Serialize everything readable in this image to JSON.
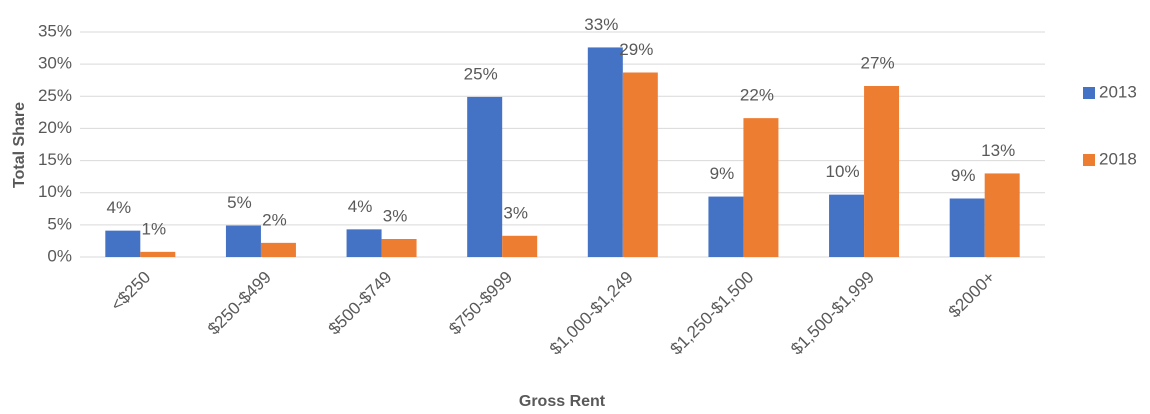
{
  "chart_data": {
    "type": "bar",
    "x_label": "Gross Rent",
    "y_label": "Total Share",
    "categories": [
      "<$250",
      "$250-$499",
      "$500-$749",
      "$750-$999",
      "$1,000-$1,249",
      "$1,250-$1,500",
      "$1,500-$1,999",
      "$2000+"
    ],
    "series": [
      {
        "name": "2013",
        "color": "#4472c4",
        "values": [
          4.1,
          4.9,
          4.3,
          24.9,
          32.6,
          9.4,
          9.7,
          9.1
        ],
        "value_labels": [
          "4%",
          "5%",
          "4%",
          "25%",
          "33%",
          "9%",
          "10%",
          "9%"
        ]
      },
      {
        "name": "2018",
        "color": "#ed7d31",
        "values": [
          0.8,
          2.2,
          2.8,
          3.3,
          28.7,
          21.6,
          26.6,
          13.0
        ],
        "value_labels": [
          "1%",
          "2%",
          "3%",
          "3%",
          "29%",
          "22%",
          "27%",
          "13%"
        ]
      }
    ],
    "ylim": [
      0,
      35
    ],
    "yticks": [
      {
        "value": 0,
        "label": "0%"
      },
      {
        "value": 5,
        "label": "5%"
      },
      {
        "value": 10,
        "label": "10%"
      },
      {
        "value": 15,
        "label": "15%"
      },
      {
        "value": 20,
        "label": "20%"
      },
      {
        "value": 25,
        "label": "25%"
      },
      {
        "value": 30,
        "label": "30%"
      },
      {
        "value": 35,
        "label": "35%"
      }
    ],
    "grid": true,
    "legend": "right"
  }
}
